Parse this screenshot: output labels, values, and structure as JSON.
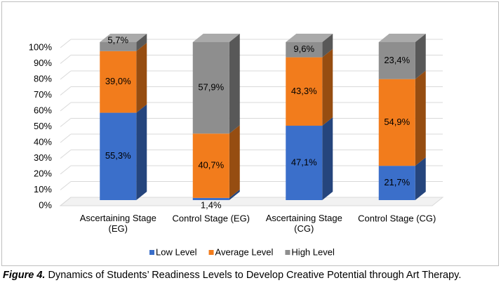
{
  "chart_data": {
    "type": "bar3d_stacked",
    "figure_label": "Figure 4.",
    "title": "Dynamics of Students’ Readiness Levels to Develop Creative Potential through Art Therapy.",
    "categories": [
      "Ascertaining Stage (EG)",
      "Control Stage (EG)",
      "Ascertaining Stage (CG)",
      "Control Stage (CG)"
    ],
    "series": [
      {
        "name": "Low Level",
        "color": "#3b6fca",
        "values": [
          55.3,
          1.4,
          47.1,
          21.7
        ],
        "value_labels": [
          "55,3%",
          "1,4%",
          "47,1%",
          "21,7%"
        ]
      },
      {
        "name": "Average Level",
        "color": "#f27c1c",
        "values": [
          39.0,
          40.7,
          43.3,
          54.9
        ],
        "value_labels": [
          "39,0%",
          "40,7%",
          "43,3%",
          "54,9%"
        ]
      },
      {
        "name": "High Level",
        "color": "#8e8e8e",
        "values": [
          5.7,
          57.9,
          9.6,
          23.4
        ],
        "value_labels": [
          "5,7%",
          "57,9%",
          "9,6%",
          "23,4%"
        ]
      }
    ],
    "ylim": [
      0,
      100
    ],
    "yticks": [
      {
        "value": 0,
        "label": "0%"
      },
      {
        "value": 10,
        "label": "10%"
      },
      {
        "value": 20,
        "label": "20%"
      },
      {
        "value": 30,
        "label": "30%"
      },
      {
        "value": 40,
        "label": "40%"
      },
      {
        "value": 50,
        "label": "50%"
      },
      {
        "value": 60,
        "label": "60%"
      },
      {
        "value": 70,
        "label": "70%"
      },
      {
        "value": 80,
        "label": "80%"
      },
      {
        "value": 90,
        "label": "90%"
      },
      {
        "value": 100,
        "label": "100%"
      }
    ],
    "grid": true,
    "legend": "bottom"
  }
}
